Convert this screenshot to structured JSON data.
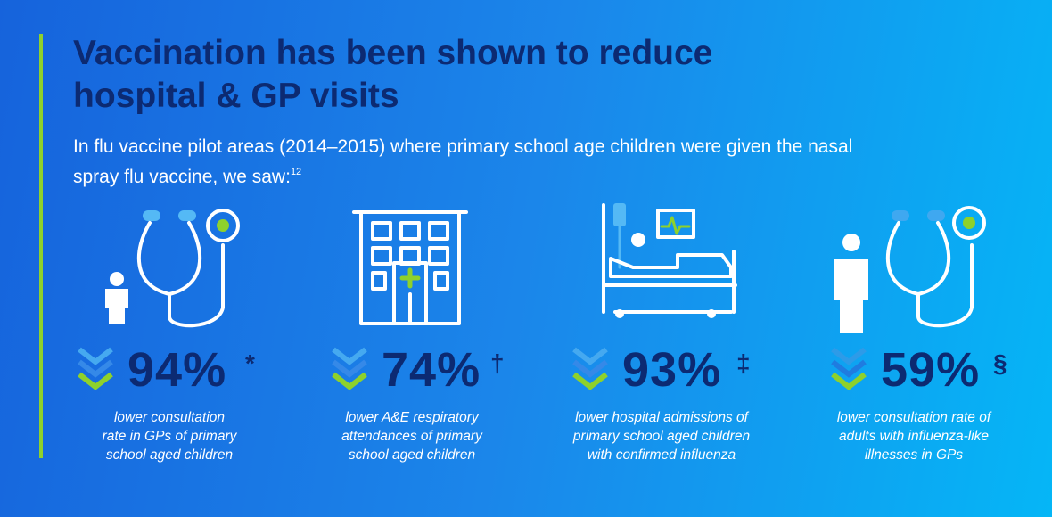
{
  "header": {
    "title": "Vaccination has been shown to reduce hospital & GP visits",
    "subtitle": "In flu vaccine pilot areas (2014–2015) where primary school age children were given the nasal spray flu vaccine, we saw:",
    "footnote_ref": "12"
  },
  "stats": [
    {
      "value": "94%",
      "mark": "*",
      "description_lines": [
        "lower consultation",
        "rate in GPs of primary",
        "school aged children"
      ]
    },
    {
      "value": "74%",
      "mark": "†",
      "description_lines": [
        "lower A&E respiratory",
        "attendances of primary",
        "school aged children"
      ]
    },
    {
      "value": "93%",
      "mark": "‡",
      "description_lines": [
        "lower hospital admissions of",
        "primary school aged children",
        "with confirmed influenza"
      ]
    },
    {
      "value": "59%",
      "mark": "§",
      "description_lines": [
        "lower consultation rate of",
        "adults with influenza-like",
        "illnesses in GPs"
      ]
    }
  ]
}
